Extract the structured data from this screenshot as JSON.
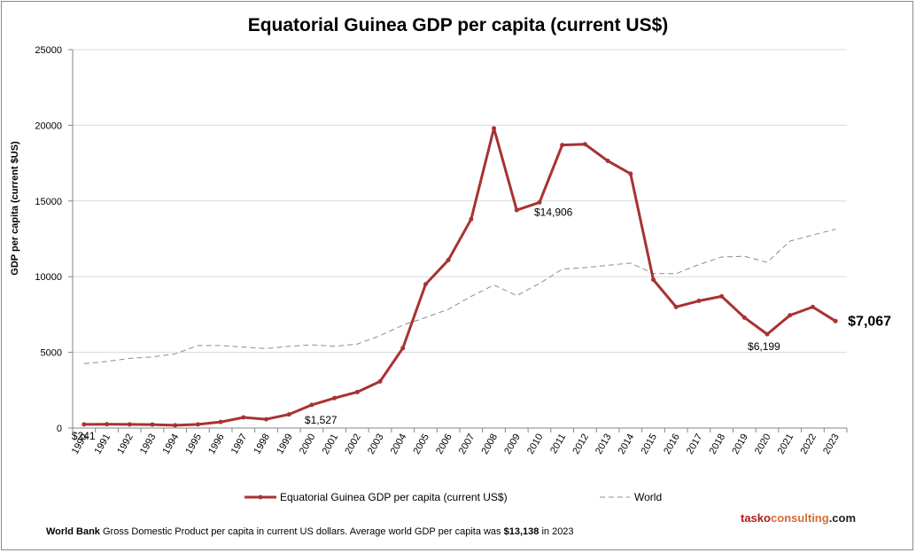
{
  "chart_data": {
    "type": "line",
    "title": "Equatorial Guinea GDP per capita (current US$)",
    "ylabel": "GDP per capita (current $US)",
    "xlabel": "",
    "ylim": [
      0,
      25000
    ],
    "yticks": [
      0,
      5000,
      10000,
      15000,
      20000,
      25000
    ],
    "grid": true,
    "legend_position": "bottom",
    "categories": [
      "1990",
      "1991",
      "1992",
      "1993",
      "1994",
      "1995",
      "1996",
      "1997",
      "1998",
      "1999",
      "2000",
      "2001",
      "2002",
      "2003",
      "2004",
      "2005",
      "2006",
      "2007",
      "2008",
      "2009",
      "2010",
      "2011",
      "2012",
      "2013",
      "2014",
      "2015",
      "2016",
      "2017",
      "2018",
      "2019",
      "2020",
      "2021",
      "2022",
      "2023"
    ],
    "series": [
      {
        "name": "Equatorial Guinea GDP per capita (current US$)",
        "color": "#a83232",
        "style": "solid-markers",
        "values": [
          241,
          250,
          240,
          230,
          180,
          240,
          400,
          700,
          580,
          900,
          1527,
          1980,
          2380,
          3080,
          5280,
          9500,
          11100,
          13800,
          19800,
          14400,
          14906,
          18700,
          18750,
          17650,
          16800,
          9800,
          8000,
          8400,
          8700,
          7300,
          6199,
          7450,
          8000,
          7067
        ]
      },
      {
        "name": "World",
        "color": "#8c8c8c",
        "style": "dashed",
        "values": [
          4250,
          4400,
          4600,
          4700,
          4900,
          5450,
          5450,
          5350,
          5250,
          5400,
          5500,
          5400,
          5550,
          6100,
          6800,
          7300,
          7850,
          8700,
          9450,
          8750,
          9550,
          10500,
          10600,
          10750,
          10900,
          10200,
          10200,
          10800,
          11300,
          11350,
          10950,
          12350,
          12750,
          13138
        ]
      }
    ],
    "annotations": [
      {
        "label": "$241",
        "series": 0,
        "index": 0,
        "emphasis": false
      },
      {
        "label": "$1,527",
        "series": 0,
        "index": 10,
        "emphasis": false
      },
      {
        "label": "$14,906",
        "series": 0,
        "index": 20,
        "emphasis": false
      },
      {
        "label": "$6,199",
        "series": 0,
        "index": 30,
        "emphasis": false
      },
      {
        "label": "$7,067",
        "series": 0,
        "index": 33,
        "emphasis": true
      }
    ]
  },
  "footer": {
    "source": "World Bank",
    "text": "Gross Domestic Product per capita in current US dollars.  Average world GDP per capita was",
    "world_value": "$13,138",
    "suffix": "in 2023"
  },
  "brand": {
    "part1": "tasko",
    "part2": "consulting",
    "part3": ".com"
  }
}
